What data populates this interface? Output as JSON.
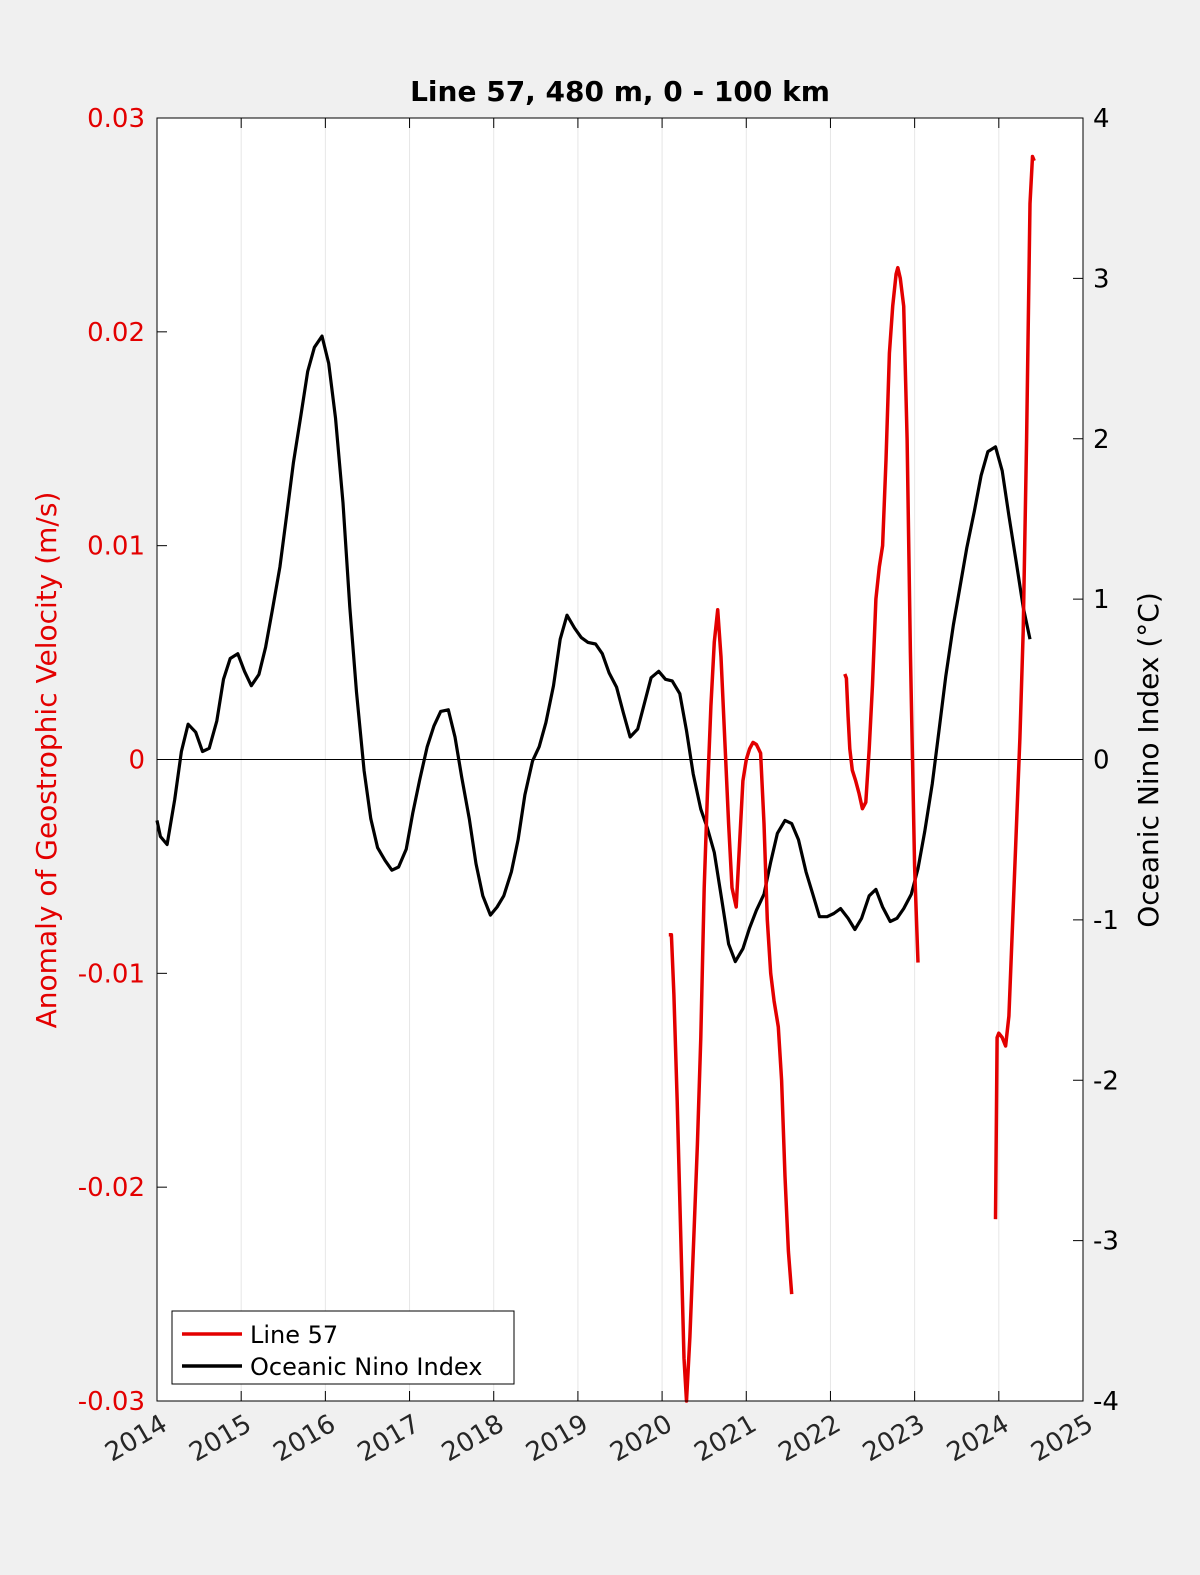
{
  "chart_data": {
    "type": "line",
    "title": "Line 57, 480 m, 0 - 100 km",
    "xlabel": "",
    "ylabel_left": "Anomaly of Geostrophic Velocity (m/s)",
    "ylabel_right": "Oceanic Nino Index (°C)",
    "xlim": [
      2014,
      2025
    ],
    "ylim_left": [
      -0.03,
      0.03
    ],
    "ylim_right": [
      -4,
      4
    ],
    "x_ticks": [
      "2014",
      "2015",
      "2016",
      "2017",
      "2018",
      "2019",
      "2020",
      "2021",
      "2022",
      "2023",
      "2024",
      "2025"
    ],
    "y_left_ticks": [
      "-0.03",
      "-0.02",
      "-0.01",
      "0",
      "0.01",
      "0.02",
      "0.03"
    ],
    "y_right_ticks": [
      "-4",
      "-3",
      "-2",
      "-1",
      "0",
      "1",
      "2",
      "3",
      "4"
    ],
    "grid": "vertical",
    "zero_line": true,
    "legend_position": "bottom-left",
    "colors": {
      "line57": "#e30000",
      "oni": "#000000",
      "left_axis": "#e30000",
      "right_axis": "#000000"
    },
    "series": [
      {
        "name": "Line 57",
        "axis": "left",
        "segments": [
          [
            [
              2020.08,
              -0.0082
            ],
            [
              2020.11,
              -0.0082
            ],
            [
              2020.14,
              -0.011
            ],
            [
              2020.18,
              -0.016
            ],
            [
              2020.22,
              -0.022
            ],
            [
              2020.26,
              -0.028
            ],
            [
              2020.29,
              -0.03
            ],
            [
              2020.33,
              -0.027
            ],
            [
              2020.38,
              -0.022
            ],
            [
              2020.42,
              -0.018
            ],
            [
              2020.46,
              -0.013
            ],
            [
              2020.5,
              -0.006
            ],
            [
              2020.54,
              -0.0015
            ],
            [
              2020.58,
              0.0025
            ],
            [
              2020.62,
              0.0055
            ],
            [
              2020.66,
              0.007
            ],
            [
              2020.7,
              0.0048
            ],
            [
              2020.75,
              0.0005
            ],
            [
              2020.79,
              -0.003
            ],
            [
              2020.83,
              -0.006
            ],
            [
              2020.88,
              -0.0069
            ],
            [
              2020.92,
              -0.004
            ],
            [
              2020.96,
              -0.001
            ],
            [
              2021.0,
              0.0
            ],
            [
              2021.04,
              0.0005
            ],
            [
              2021.08,
              0.0008
            ],
            [
              2021.12,
              0.0007
            ],
            [
              2021.17,
              0.0003
            ],
            [
              2021.21,
              -0.003
            ],
            [
              2021.25,
              -0.0075
            ],
            [
              2021.29,
              -0.01
            ],
            [
              2021.33,
              -0.0113
            ],
            [
              2021.38,
              -0.0125
            ],
            [
              2021.42,
              -0.015
            ],
            [
              2021.46,
              -0.0195
            ],
            [
              2021.5,
              -0.023
            ],
            [
              2021.54,
              -0.025
            ]
          ],
          [
            [
              2022.17,
              0.004
            ],
            [
              2022.19,
              0.0038
            ],
            [
              2022.21,
              0.002
            ],
            [
              2022.23,
              0.0005
            ],
            [
              2022.26,
              -0.0005
            ],
            [
              2022.3,
              -0.001
            ],
            [
              2022.34,
              -0.0016
            ],
            [
              2022.38,
              -0.0023
            ],
            [
              2022.42,
              -0.002
            ],
            [
              2022.46,
              0.0005
            ],
            [
              2022.5,
              0.0035
            ],
            [
              2022.54,
              0.0075
            ],
            [
              2022.58,
              0.009
            ],
            [
              2022.62,
              0.01
            ],
            [
              2022.66,
              0.014
            ],
            [
              2022.7,
              0.019
            ],
            [
              2022.74,
              0.0212
            ],
            [
              2022.78,
              0.0227
            ],
            [
              2022.8,
              0.023
            ],
            [
              2022.83,
              0.0225
            ],
            [
              2022.87,
              0.0212
            ],
            [
              2022.91,
              0.015
            ],
            [
              2022.95,
              0.005
            ],
            [
              2023.0,
              -0.005
            ],
            [
              2023.04,
              -0.0095
            ]
          ],
          [
            [
              2023.96,
              -0.0215
            ],
            [
              2023.98,
              -0.013
            ],
            [
              2024.0,
              -0.0128
            ],
            [
              2024.04,
              -0.013
            ],
            [
              2024.08,
              -0.0134
            ],
            [
              2024.12,
              -0.012
            ],
            [
              2024.16,
              -0.008
            ],
            [
              2024.2,
              -0.004
            ],
            [
              2024.25,
              0.001
            ],
            [
              2024.29,
              0.006
            ],
            [
              2024.33,
              0.015
            ],
            [
              2024.37,
              0.026
            ],
            [
              2024.4,
              0.0282
            ],
            [
              2024.42,
              0.028
            ]
          ]
        ]
      },
      {
        "name": "Oceanic Nino Index",
        "axis": "right",
        "points": [
          [
            2014.0,
            -0.38
          ],
          [
            2014.04,
            -0.48
          ],
          [
            2014.12,
            -0.53
          ],
          [
            2014.21,
            -0.25
          ],
          [
            2014.29,
            0.05
          ],
          [
            2014.37,
            0.22
          ],
          [
            2014.46,
            0.17
          ],
          [
            2014.54,
            0.05
          ],
          [
            2014.62,
            0.07
          ],
          [
            2014.71,
            0.24
          ],
          [
            2014.79,
            0.5
          ],
          [
            2014.87,
            0.63
          ],
          [
            2014.96,
            0.66
          ],
          [
            2015.04,
            0.55
          ],
          [
            2015.12,
            0.46
          ],
          [
            2015.21,
            0.53
          ],
          [
            2015.29,
            0.7
          ],
          [
            2015.37,
            0.93
          ],
          [
            2015.46,
            1.2
          ],
          [
            2015.54,
            1.52
          ],
          [
            2015.62,
            1.85
          ],
          [
            2015.71,
            2.15
          ],
          [
            2015.79,
            2.42
          ],
          [
            2015.87,
            2.57
          ],
          [
            2015.96,
            2.64
          ],
          [
            2016.04,
            2.47
          ],
          [
            2016.12,
            2.13
          ],
          [
            2016.21,
            1.6
          ],
          [
            2016.29,
            0.95
          ],
          [
            2016.37,
            0.42
          ],
          [
            2016.46,
            -0.07
          ],
          [
            2016.54,
            -0.37
          ],
          [
            2016.62,
            -0.55
          ],
          [
            2016.71,
            -0.63
          ],
          [
            2016.79,
            -0.69
          ],
          [
            2016.87,
            -0.67
          ],
          [
            2016.96,
            -0.56
          ],
          [
            2017.04,
            -0.33
          ],
          [
            2017.12,
            -0.13
          ],
          [
            2017.21,
            0.08
          ],
          [
            2017.29,
            0.21
          ],
          [
            2017.37,
            0.3
          ],
          [
            2017.46,
            0.31
          ],
          [
            2017.54,
            0.14
          ],
          [
            2017.62,
            -0.11
          ],
          [
            2017.71,
            -0.37
          ],
          [
            2017.79,
            -0.65
          ],
          [
            2017.87,
            -0.85
          ],
          [
            2017.96,
            -0.97
          ],
          [
            2018.04,
            -0.92
          ],
          [
            2018.12,
            -0.85
          ],
          [
            2018.21,
            -0.7
          ],
          [
            2018.29,
            -0.5
          ],
          [
            2018.37,
            -0.22
          ],
          [
            2018.46,
            -0.01
          ],
          [
            2018.54,
            0.08
          ],
          [
            2018.62,
            0.23
          ],
          [
            2018.71,
            0.46
          ],
          [
            2018.79,
            0.75
          ],
          [
            2018.87,
            0.9
          ],
          [
            2018.96,
            0.82
          ],
          [
            2019.04,
            0.76
          ],
          [
            2019.12,
            0.73
          ],
          [
            2019.21,
            0.72
          ],
          [
            2019.29,
            0.66
          ],
          [
            2019.37,
            0.54
          ],
          [
            2019.46,
            0.45
          ],
          [
            2019.54,
            0.29
          ],
          [
            2019.62,
            0.14
          ],
          [
            2019.71,
            0.19
          ],
          [
            2019.79,
            0.35
          ],
          [
            2019.87,
            0.51
          ],
          [
            2019.96,
            0.55
          ],
          [
            2020.04,
            0.5
          ],
          [
            2020.12,
            0.49
          ],
          [
            2020.21,
            0.41
          ],
          [
            2020.29,
            0.18
          ],
          [
            2020.37,
            -0.09
          ],
          [
            2020.46,
            -0.31
          ],
          [
            2020.54,
            -0.43
          ],
          [
            2020.62,
            -0.58
          ],
          [
            2020.71,
            -0.88
          ],
          [
            2020.79,
            -1.15
          ],
          [
            2020.87,
            -1.26
          ],
          [
            2020.96,
            -1.18
          ],
          [
            2021.04,
            -1.05
          ],
          [
            2021.12,
            -0.94
          ],
          [
            2021.21,
            -0.84
          ],
          [
            2021.29,
            -0.64
          ],
          [
            2021.37,
            -0.46
          ],
          [
            2021.46,
            -0.38
          ],
          [
            2021.54,
            -0.4
          ],
          [
            2021.62,
            -0.5
          ],
          [
            2021.71,
            -0.7
          ],
          [
            2021.79,
            -0.84
          ],
          [
            2021.87,
            -0.98
          ],
          [
            2021.96,
            -0.98
          ],
          [
            2022.04,
            -0.96
          ],
          [
            2022.12,
            -0.93
          ],
          [
            2022.21,
            -0.99
          ],
          [
            2022.29,
            -1.06
          ],
          [
            2022.37,
            -0.99
          ],
          [
            2022.46,
            -0.85
          ],
          [
            2022.54,
            -0.81
          ],
          [
            2022.62,
            -0.92
          ],
          [
            2022.71,
            -1.01
          ],
          [
            2022.79,
            -0.99
          ],
          [
            2022.87,
            -0.93
          ],
          [
            2022.96,
            -0.84
          ],
          [
            2023.04,
            -0.68
          ],
          [
            2023.12,
            -0.45
          ],
          [
            2023.21,
            -0.15
          ],
          [
            2023.29,
            0.18
          ],
          [
            2023.37,
            0.52
          ],
          [
            2023.46,
            0.84
          ],
          [
            2023.54,
            1.08
          ],
          [
            2023.62,
            1.32
          ],
          [
            2023.71,
            1.55
          ],
          [
            2023.79,
            1.77
          ],
          [
            2023.87,
            1.92
          ],
          [
            2023.96,
            1.95
          ],
          [
            2024.04,
            1.8
          ],
          [
            2024.12,
            1.52
          ],
          [
            2024.21,
            1.22
          ],
          [
            2024.29,
            0.95
          ],
          [
            2024.37,
            0.75
          ]
        ]
      }
    ]
  }
}
